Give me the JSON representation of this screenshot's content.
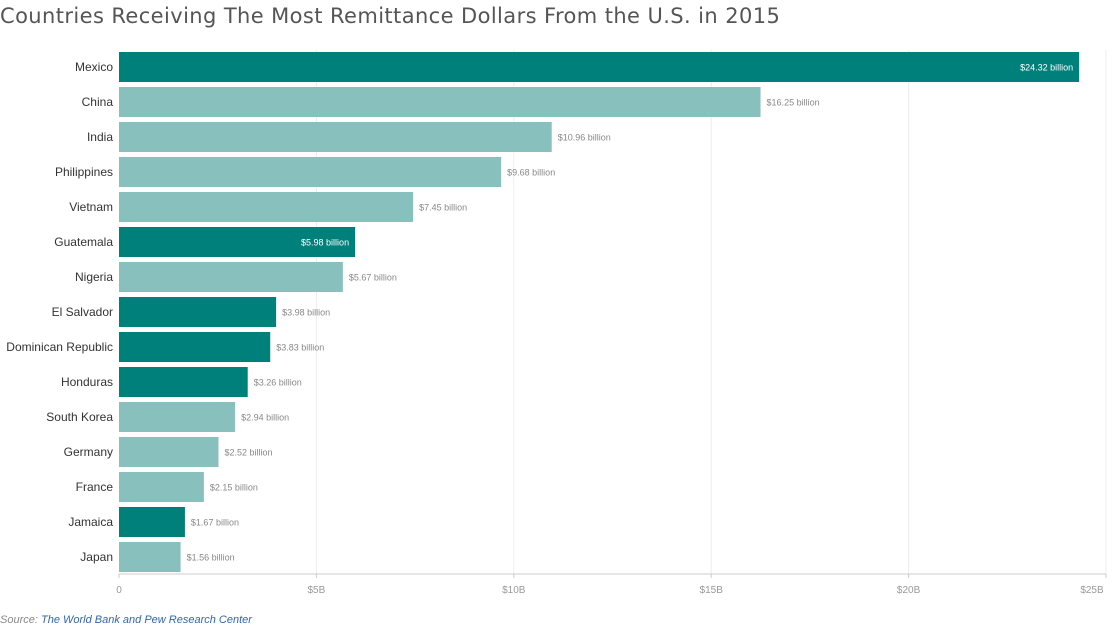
{
  "chart_data": {
    "type": "bar",
    "orientation": "horizontal",
    "title": "Countries Receiving The Most Remittance Dollars From the U.S. in 2015",
    "categories": [
      "Mexico",
      "China",
      "India",
      "Philippines",
      "Vietnam",
      "Guatemala",
      "Nigeria",
      "El Salvador",
      "Dominican Republic",
      "Honduras",
      "South Korea",
      "Germany",
      "France",
      "Jamaica",
      "Japan"
    ],
    "values": [
      24.32,
      16.25,
      10.96,
      9.68,
      7.45,
      5.98,
      5.67,
      3.98,
      3.83,
      3.26,
      2.94,
      2.52,
      2.15,
      1.67,
      1.56
    ],
    "value_labels": [
      "$24.32 billion",
      "$16.25 billion",
      "$10.96 billion",
      "$9.68 billion",
      "$7.45 billion",
      "$5.98 billion",
      "$5.67 billion",
      "$3.98 billion",
      "$3.83 billion",
      "$3.26 billion",
      "$2.94 billion",
      "$2.52 billion",
      "$2.15 billion",
      "$1.67 billion",
      "$1.56 billion"
    ],
    "highlighted": [
      true,
      false,
      false,
      false,
      false,
      true,
      false,
      true,
      true,
      true,
      false,
      false,
      false,
      true,
      false
    ],
    "xlim": [
      0,
      25
    ],
    "x_ticks": [
      0,
      5,
      10,
      15,
      20,
      25
    ],
    "x_tick_labels": [
      "0",
      "$5B",
      "$10B",
      "$15B",
      "$20B",
      "$25B"
    ],
    "xlabel": "",
    "ylabel": "",
    "grid": true,
    "legend": "none",
    "colors": {
      "highlight": "#00807a",
      "base": "#87c0bc",
      "label_inside": "#ffffff",
      "label_outside": "#888888"
    }
  },
  "source": {
    "prefix": "Source:",
    "text": "The World Bank and Pew Research Center"
  }
}
